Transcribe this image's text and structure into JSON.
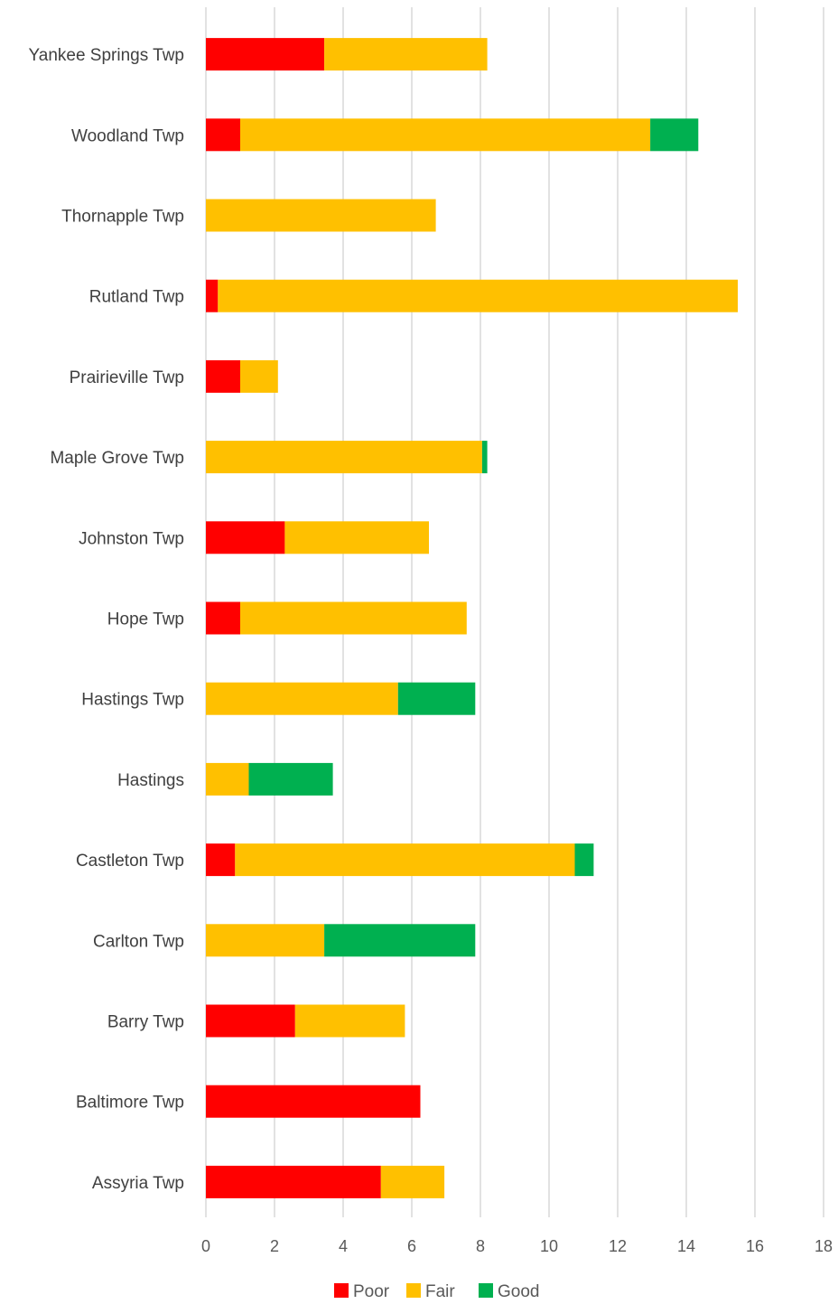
{
  "chart_data": {
    "type": "bar",
    "orientation": "horizontal",
    "stacked": true,
    "categories": [
      "Yankee Springs Twp",
      "Woodland Twp",
      "Thornapple Twp",
      "Rutland Twp",
      "Prairieville Twp",
      "Maple Grove Twp",
      "Johnston Twp",
      "Hope Twp",
      "Hastings Twp",
      "Hastings",
      "Castleton Twp",
      "Carlton Twp",
      "Barry Twp",
      "Baltimore Twp",
      "Assyria Twp"
    ],
    "series": [
      {
        "name": "Poor",
        "color": "#ff0000",
        "values": [
          3.45,
          1.0,
          0,
          0.35,
          1.0,
          0,
          2.3,
          1.0,
          0,
          0,
          0.85,
          0,
          2.6,
          6.25,
          5.1
        ]
      },
      {
        "name": "Fair",
        "color": "#ffc000",
        "values": [
          4.75,
          11.95,
          6.7,
          15.15,
          1.1,
          8.05,
          4.2,
          6.6,
          5.6,
          1.25,
          9.9,
          3.45,
          3.2,
          0,
          1.85
        ]
      },
      {
        "name": "Good",
        "color": "#00b050",
        "values": [
          0,
          1.4,
          0,
          0,
          0,
          0.15,
          0,
          0,
          2.25,
          2.45,
          0.55,
          4.4,
          0,
          0,
          0
        ]
      }
    ],
    "xlim": [
      0,
      18
    ],
    "xticks": [
      "0",
      "2",
      "4",
      "6",
      "8",
      "10",
      "12",
      "14",
      "16",
      "18"
    ],
    "title": "",
    "xlabel": "",
    "ylabel": "",
    "grid": "vertical",
    "legend_position": "bottom"
  }
}
